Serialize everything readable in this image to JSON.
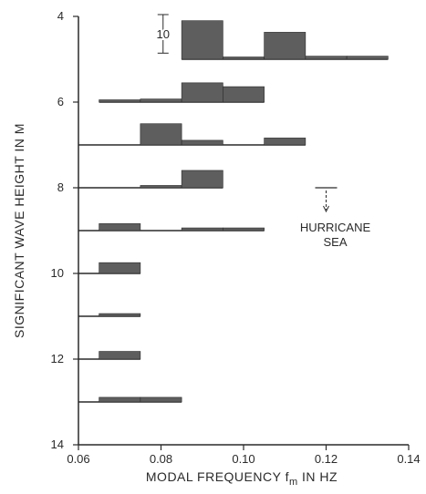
{
  "chart_data": {
    "type": "bar",
    "title": "",
    "xlabel": {
      "main": "MODAL  FREQUENCY f",
      "sub": "m",
      "tail": " IN HZ"
    },
    "ylabel": "SIGNIFICANT WAVE HEIGHT IN M",
    "xlim": [
      0.06,
      0.14
    ],
    "ylim": [
      4,
      14
    ],
    "x_ticks": [
      {
        "value": 0.06,
        "label": "0.06"
      },
      {
        "value": 0.08,
        "label": "0.08"
      },
      {
        "value": 0.1,
        "label": "0.10"
      },
      {
        "value": 0.12,
        "label": "0.12"
      },
      {
        "value": 0.14,
        "label": "0.14"
      }
    ],
    "y_ticks": [
      {
        "value": 4,
        "label": "4"
      },
      {
        "value": 6,
        "label": "6"
      },
      {
        "value": 8,
        "label": "8"
      },
      {
        "value": 10,
        "label": "10"
      },
      {
        "value": 12,
        "label": "12"
      },
      {
        "value": 14,
        "label": "14"
      }
    ],
    "bin_width": 0.01,
    "scale_bar": {
      "label": "10",
      "value": 10
    },
    "rows": [
      {
        "height": 5,
        "line": [
          0.085,
          0.135
        ],
        "bars": [
          [
            0.085,
            10
          ],
          [
            0.095,
            0.3
          ],
          [
            0.105,
            7
          ],
          [
            0.115,
            0.8
          ],
          [
            0.125,
            0.8
          ]
        ]
      },
      {
        "height": 6,
        "line": [
          0.065,
          0.105
        ],
        "bars": [
          [
            0.065,
            0.5
          ],
          [
            0.075,
            0.8
          ],
          [
            0.085,
            5
          ],
          [
            0.095,
            4
          ]
        ]
      },
      {
        "height": 7,
        "line": [
          0.06,
          0.115
        ],
        "bars": [
          [
            0.075,
            5.5
          ],
          [
            0.085,
            1.2
          ],
          [
            0.105,
            1.8
          ]
        ]
      },
      {
        "height": 8,
        "line": [
          0.06,
          0.095
        ],
        "bars": [
          [
            0.075,
            0.6
          ],
          [
            0.085,
            4.5
          ]
        ]
      },
      {
        "height": 9,
        "line": [
          0.06,
          0.105
        ],
        "bars": [
          [
            0.065,
            1.8
          ],
          [
            0.085,
            0.7
          ],
          [
            0.095,
            0.7
          ]
        ]
      },
      {
        "height": 10,
        "line": [
          0.06,
          0.075
        ],
        "bars": [
          [
            0.065,
            2.8
          ]
        ]
      },
      {
        "height": 11,
        "line": [
          0.06,
          0.075
        ],
        "bars": [
          [
            0.065,
            0.7
          ]
        ]
      },
      {
        "height": 12,
        "line": [
          0.06,
          0.075
        ],
        "bars": [
          [
            0.065,
            2
          ]
        ]
      },
      {
        "height": 13,
        "line": [
          0.06,
          0.085
        ],
        "bars": [
          [
            0.065,
            1.2
          ],
          [
            0.075,
            1.2
          ]
        ]
      }
    ],
    "annotations": [
      {
        "text": [
          "HURRICANE",
          "SEA"
        ],
        "x": 0.12,
        "y": 8
      }
    ],
    "grid": false,
    "legend": "none"
  },
  "colors": {
    "ink": "#2a2a2a",
    "bar_fill": "#5e5e5e"
  }
}
